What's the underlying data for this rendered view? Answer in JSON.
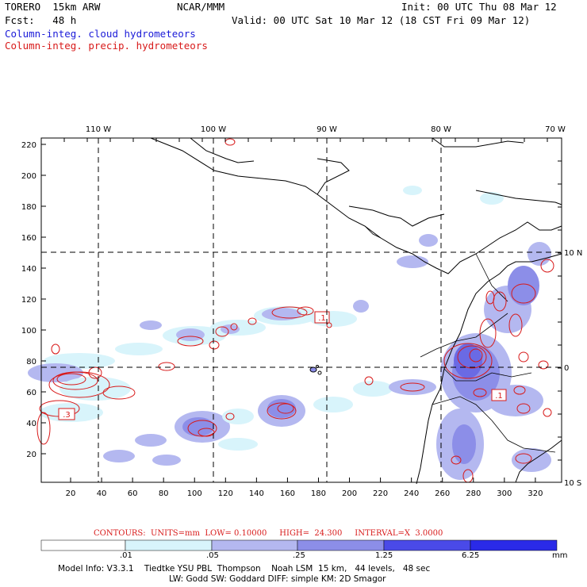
{
  "header": {
    "model": "TORERO  15km ARW",
    "center": "NCAR/MMM",
    "init": "Init: 00 UTC Thu 08 Mar 12",
    "fcst": "Fcst:   48 h",
    "valid": "Valid: 00 UTC Sat 10 Mar 12 (18 CST Fri 09 Mar 12)",
    "field_cloud": "Column-integ. cloud hydrometeors",
    "field_precip": "Column-integ. precip. hydrometeors"
  },
  "map": {
    "top_lon_labels": [
      "110 W",
      "100 W",
      "90 W",
      "80 W",
      "70 W"
    ],
    "right_lat_labels": [
      "10 N",
      "0",
      "10 S"
    ],
    "left_ticks": [
      "220",
      "200",
      "180",
      "160",
      "140",
      "120",
      "100",
      "80",
      "60",
      "40",
      "20"
    ],
    "bottom_ticks": [
      "20",
      "40",
      "60",
      "80",
      "100",
      "120",
      "140",
      "160",
      "180",
      "200",
      "220",
      "240",
      "260",
      "280",
      "300",
      "320"
    ],
    "contour_box_labels": [
      ".1",
      ".3",
      ".1"
    ]
  },
  "colors": {
    "cloud": "#1a1ad8",
    "precip": "#d81a1a",
    "shade1": "#d8f4fb",
    "shade2": "#b4b8f0",
    "shade3": "#8c8ee8",
    "shade4": "#6a6ae4",
    "shade5": "#4a4ae8",
    "shade6": "#2a2ae8"
  },
  "contours": {
    "units_text": "CONTOURS:  UNITS=mm  LOW= 0.10000     HIGH=  24.300     INTERVAL=X  3.0000"
  },
  "colorbar": {
    "labels": [
      ".01",
      ".05",
      ".25",
      "1.25",
      "6.25"
    ],
    "unit": "mm"
  },
  "footer": {
    "line1": "Model Info: V3.3.1    Tiedtke YSU PBL  Thompson    Noah LSM  15 km,   44 levels,   48 sec",
    "line2": "LW: Godd SW: Goddard DIFF: simple KM: 2D Smagor"
  }
}
